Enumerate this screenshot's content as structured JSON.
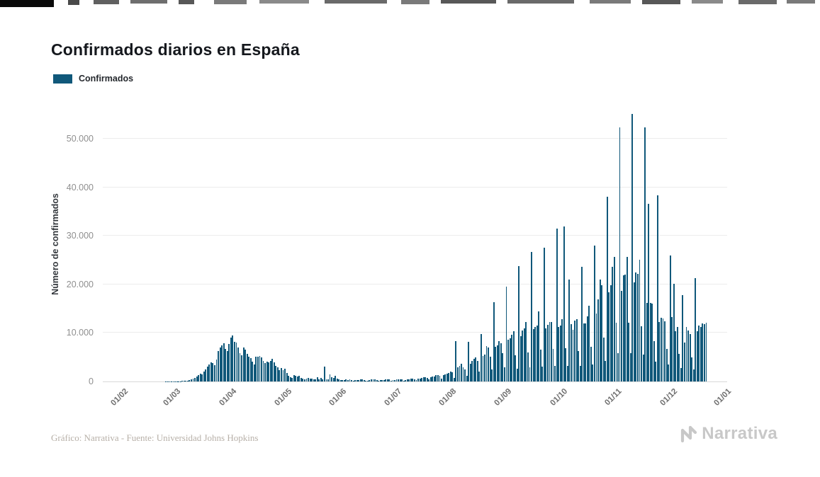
{
  "page": {
    "title": "Confirmados diarios en España",
    "legend": {
      "label": "Confirmados",
      "color": "#10587a"
    },
    "footer_credit": "Gráfico: Narrativa - Fuente: Universidad Johns Hopkins",
    "brand": "Narrativa"
  },
  "chart_data": {
    "type": "bar",
    "title": "Confirmados diarios en España",
    "xlabel": "",
    "ylabel": "Número de confirmados",
    "legend": [
      "Confirmados"
    ],
    "legend_position": "top-left",
    "bar_color": "#10587a",
    "grid": "horizontal",
    "ylim": [
      0,
      57000
    ],
    "yticks": [
      0,
      10000,
      20000,
      30000,
      40000,
      50000
    ],
    "ytick_labels": [
      "0",
      "10.000",
      "20.000",
      "30.000",
      "40.000",
      "50.000"
    ],
    "x_axis_span_days": 335,
    "xticks": [
      {
        "label": "01/02",
        "day": 0
      },
      {
        "label": "01/03",
        "day": 29
      },
      {
        "label": "01/04",
        "day": 60
      },
      {
        "label": "01/05",
        "day": 91
      },
      {
        "label": "01/06",
        "day": 121
      },
      {
        "label": "01/07",
        "day": 152
      },
      {
        "label": "01/08",
        "day": 182
      },
      {
        "label": "01/09",
        "day": 213
      },
      {
        "label": "01/10",
        "day": 244
      },
      {
        "label": "01/11",
        "day": 274
      },
      {
        "label": "01/12",
        "day": 305
      },
      {
        "label": "01/01",
        "day": 335
      }
    ],
    "series": [
      {
        "name": "Confirmados",
        "start_label": "01/02",
        "frequency": "daily",
        "values": [
          0,
          0,
          0,
          0,
          0,
          0,
          0,
          0,
          0,
          0,
          0,
          0,
          0,
          0,
          0,
          0,
          0,
          0,
          0,
          0,
          0,
          0,
          0,
          1,
          2,
          3,
          6,
          10,
          15,
          25,
          35,
          55,
          80,
          120,
          165,
          220,
          310,
          420,
          560,
          740,
          960,
          1250,
          1550,
          1420,
          2000,
          2540,
          3050,
          3500,
          4000,
          3750,
          3400,
          4550,
          6250,
          7050,
          7450,
          7850,
          6750,
          6250,
          7800,
          9100,
          9500,
          8150,
          7950,
          7050,
          5900,
          5450,
          7000,
          6550,
          5750,
          5050,
          4750,
          4150,
          3450,
          5050,
          5100,
          5200,
          4950,
          4200,
          3750,
          4150,
          3950,
          4200,
          4600,
          3900,
          3250,
          2870,
          2280,
          2700,
          2400,
          2650,
          1780,
          1150,
          900,
          790,
          1300,
          1100,
          1080,
          1200,
          720,
          580,
          480,
          600,
          680,
          590,
          550,
          500,
          420,
          880,
          500,
          680,
          480,
          3050,
          450,
          380,
          1480,
          880,
          780,
          1100,
          640,
          390,
          240,
          290,
          240,
          390,
          340,
          390,
          290,
          140,
          240,
          290,
          340,
          440,
          390,
          340,
          140,
          190,
          340,
          390,
          440,
          390,
          340,
          140,
          240,
          340,
          340,
          440,
          490,
          390,
          140,
          240,
          340,
          390,
          440,
          490,
          390,
          190,
          340,
          440,
          490,
          540,
          590,
          490,
          240,
          540,
          640,
          690,
          880,
          930,
          780,
          390,
          880,
          970,
          1080,
          1280,
          1360,
          1150,
          580,
          1280,
          1480,
          1580,
          1780,
          2080,
          1950,
          690,
          8250,
          2980,
          3180,
          3580,
          2980,
          2480,
          1180,
          8150,
          3680,
          4180,
          4680,
          4980,
          4180,
          2080,
          9700,
          5280,
          5480,
          7280,
          6980,
          5080,
          2480,
          16300,
          7180,
          7480,
          8280,
          7880,
          5880,
          2880,
          19500,
          8580,
          8880,
          9580,
          10280,
          5380,
          2680,
          23700,
          9380,
          10480,
          10880,
          12180,
          5980,
          2880,
          26700,
          10780,
          11280,
          11580,
          14380,
          6580,
          3080,
          27500,
          10980,
          11680,
          12280,
          12180,
          6780,
          3180,
          31500,
          11280,
          11480,
          12880,
          31900,
          6880,
          3280,
          21000,
          11780,
          10680,
          12580,
          12880,
          6280,
          3180,
          23600,
          11980,
          11980,
          13380,
          15580,
          7080,
          3480,
          28000,
          13980,
          16980,
          20980,
          19880,
          9080,
          4280,
          38000,
          18420,
          19760,
          23580,
          25590,
          12100,
          5800,
          52300,
          18670,
          21910,
          21960,
          25600,
          12050,
          5900,
          55100,
          20480,
          22380,
          22180,
          25080,
          11380,
          5480,
          52400,
          16230,
          36600,
          16230,
          15990,
          8260,
          4020,
          38400,
          12230,
          13190,
          12940,
          12390,
          6780,
          3520,
          25900,
          13230,
          20060,
          10330,
          11210,
          5620,
          2810,
          17800,
          8020,
          11170,
          10520,
          9750,
          5010,
          2510,
          21300,
          10330,
          11480,
          11200,
          12010,
          11870,
          12030
        ]
      }
    ]
  }
}
